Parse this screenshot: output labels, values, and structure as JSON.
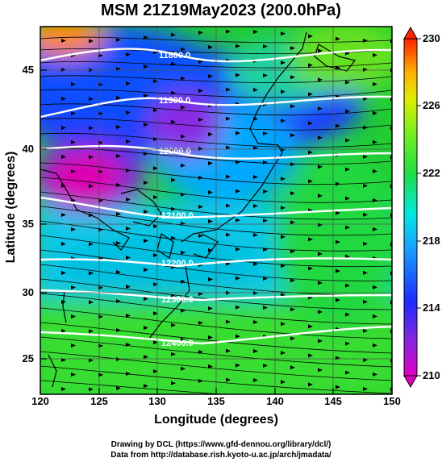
{
  "title": "MSM 21Z19May2023 (200.0hPa)",
  "axes": {
    "xlabel": "Longitude (degrees)",
    "ylabel": "Latitude  (degrees)",
    "xticks": [
      "120",
      "125",
      "130",
      "135",
      "140",
      "145",
      "150"
    ],
    "yticks": [
      "45",
      "40",
      "35",
      "30",
      "25"
    ]
  },
  "colorbar": {
    "labels": [
      "230",
      "226",
      "222",
      "218",
      "214",
      "210"
    ]
  },
  "contours": [
    "11800.0",
    "11900.0",
    "12000.0",
    "12100.0",
    "12200.0",
    "12300.0",
    "12400.0"
  ],
  "credits": {
    "line1": "Drawing by DCL (https://www.gfd-dennou.org/library/dcl/)",
    "line2": "Data from http://database.rish.kyoto-u.ac.jp/arch/jmadata/"
  },
  "colors": {
    "magenta": "#d000d0",
    "purple": "#8a2be2",
    "blue": "#1e3cff",
    "cyan": "#00d8ff",
    "green": "#22dd22",
    "yellow": "#e8f000",
    "orange": "#ff9900",
    "red": "#ff2200"
  }
}
